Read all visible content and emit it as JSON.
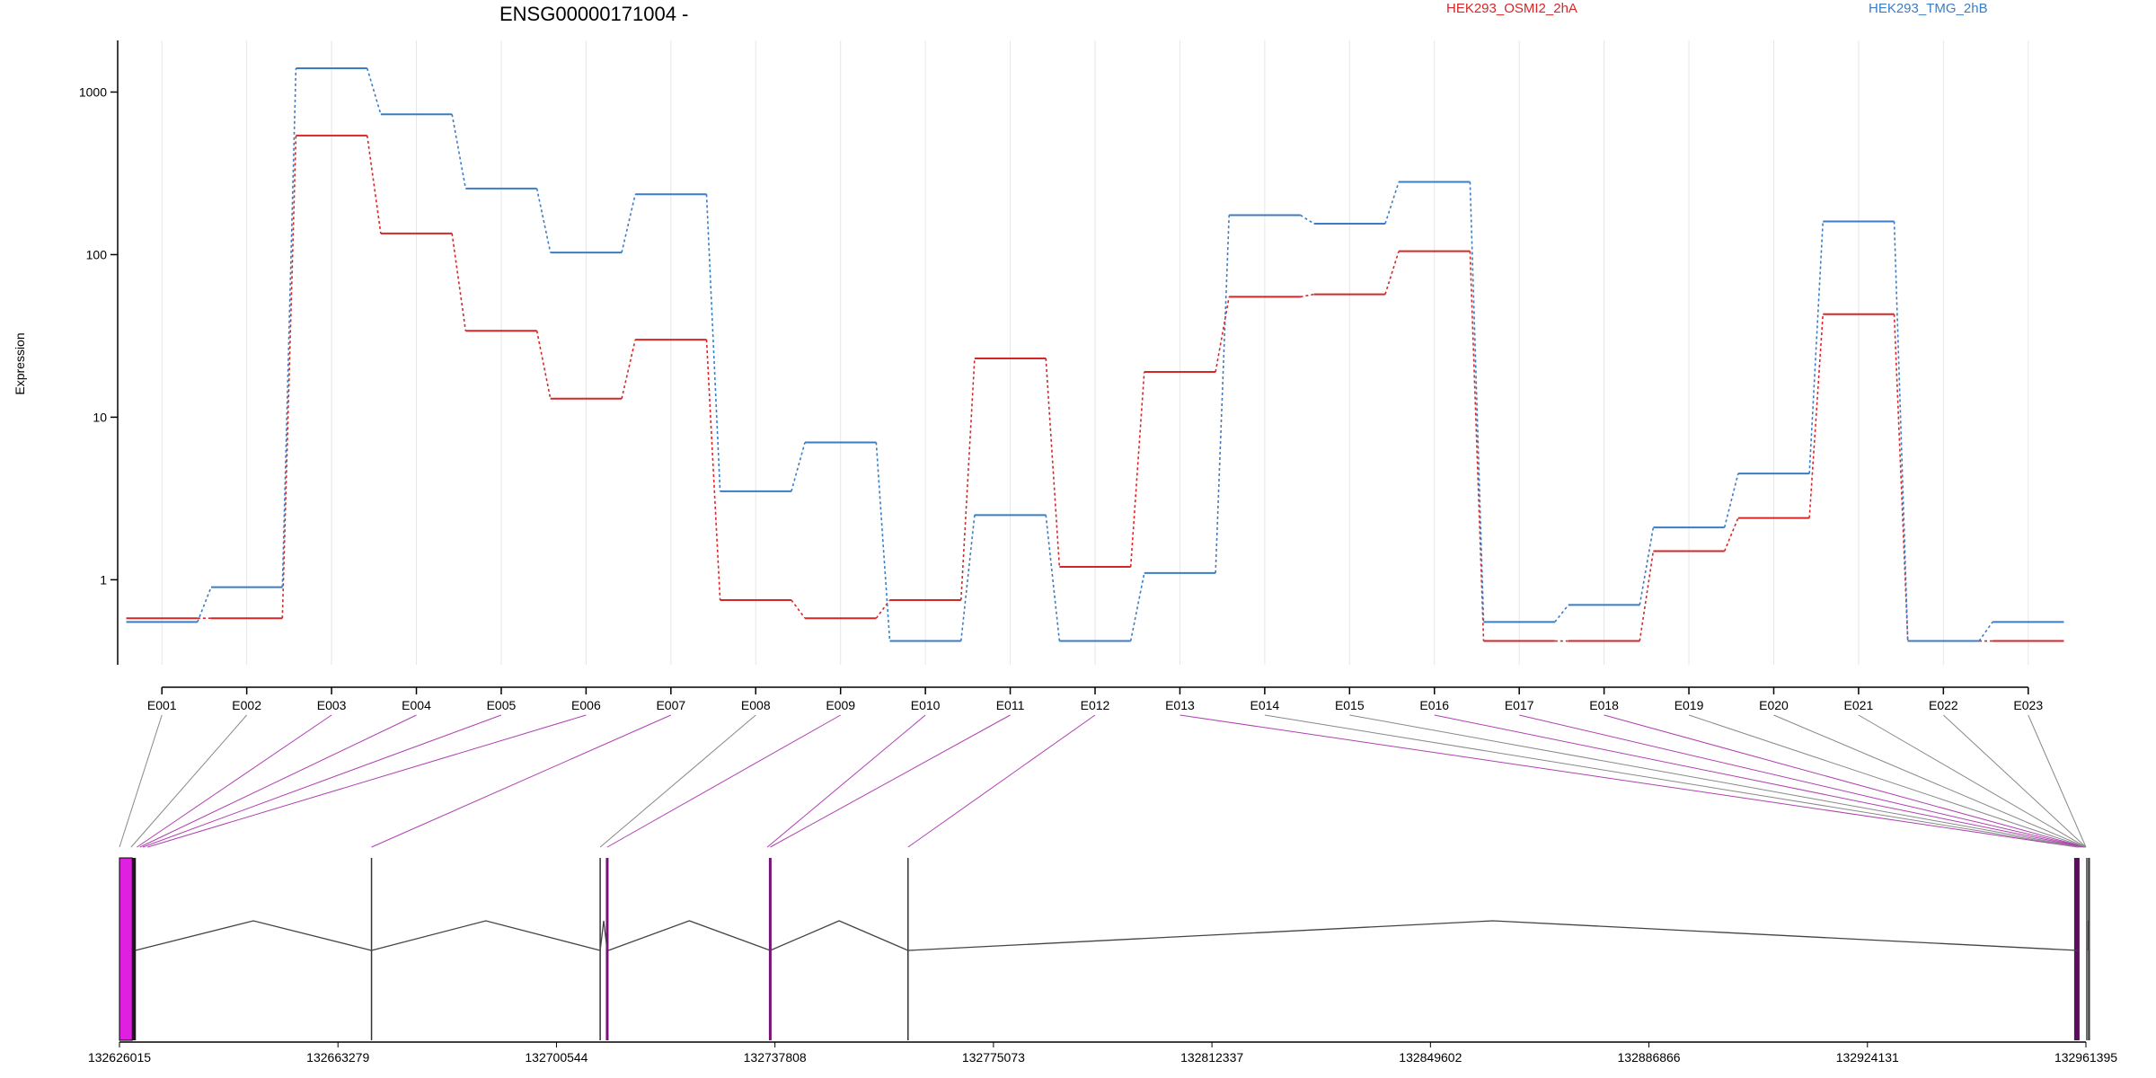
{
  "chart_data": {
    "type": "line",
    "title": "ENSG00000171004 -",
    "ylabel": "Expression",
    "yscale": "log",
    "ylim": [
      0.3,
      2000
    ],
    "y_ticks": [
      1,
      10,
      100,
      1000
    ],
    "y_tick_labels": [
      "1",
      "10",
      "100",
      "1000"
    ],
    "grid": "vertical only (light gray, one per exon)",
    "legend_placement": "top-right",
    "categories": [
      "E001",
      "E002",
      "E003",
      "E004",
      "E005",
      "E006",
      "E007",
      "E008",
      "E009",
      "E010",
      "E011",
      "E012",
      "E013",
      "E014",
      "E015",
      "E016",
      "E017",
      "E018",
      "E019",
      "E020",
      "E021",
      "E022",
      "E023"
    ],
    "series": [
      {
        "name": "HEK293_OSMI2_2hA",
        "color": "#d62728",
        "values": [
          0.58,
          0.58,
          540,
          135,
          34,
          13,
          30,
          0.75,
          0.58,
          0.75,
          23,
          1.2,
          19,
          55,
          57,
          105,
          0.42,
          0.42,
          1.5,
          2.4,
          43,
          0.42,
          0.42
        ]
      },
      {
        "name": "HEK293_TMG_2hB",
        "color": "#3b7dc4",
        "values": [
          0.55,
          0.9,
          1400,
          730,
          255,
          103,
          235,
          3.5,
          7,
          0.42,
          2.5,
          0.42,
          1.1,
          175,
          155,
          280,
          0.55,
          0.7,
          2.1,
          4.5,
          160,
          0.42,
          0.55
        ]
      }
    ],
    "gene_model": {
      "coordinate_ticks": [
        "132626015",
        "132663279",
        "132700544",
        "132737808",
        "132775073",
        "132812337",
        "132849602",
        "132886866",
        "132924131",
        "132961395"
      ],
      "range": [
        132626015,
        132961395
      ],
      "exon_starts": [
        132626015,
        132628000,
        132629000,
        132629500,
        132630000,
        132630800,
        132669000,
        132708000,
        132709200,
        132736500,
        132737000,
        132760500,
        132960000,
        132960300,
        132960600,
        132960900,
        132961100,
        132961200,
        132961300,
        132961350,
        132961380,
        132961395,
        132961395
      ],
      "highlighted_exons": [
        "E003",
        "E004",
        "E005",
        "E006",
        "E007",
        "E009",
        "E010",
        "E011",
        "E012",
        "E013",
        "E016",
        "E017",
        "E018"
      ],
      "colors": {
        "highlight": "#e020e0",
        "connector_highlight": "#b040b0",
        "connector_plain": "#888888"
      }
    }
  }
}
